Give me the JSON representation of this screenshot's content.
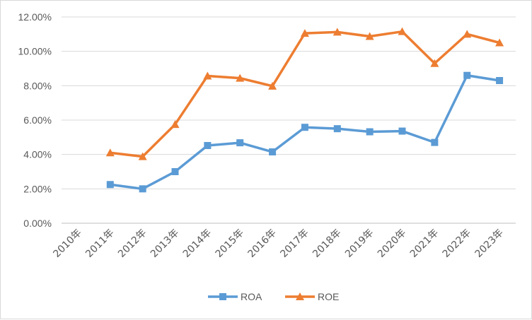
{
  "chart_data": {
    "type": "line",
    "title": "",
    "xlabel": "",
    "ylabel": "",
    "categories": [
      "2010年",
      "2011年",
      "2012年",
      "2013年",
      "2014年",
      "2015年",
      "2016年",
      "2017年",
      "2018年",
      "2019年",
      "2020年",
      "2021年",
      "2022年",
      "2023年"
    ],
    "y_ticks": [
      "0.00%",
      "2.00%",
      "4.00%",
      "6.00%",
      "8.00%",
      "10.00%",
      "12.00%"
    ],
    "ylim": [
      0,
      12
    ],
    "grid": true,
    "legend_position": "bottom",
    "series": [
      {
        "name": "ROA",
        "color": "#5B9BD5",
        "marker": "square",
        "values": [
          null,
          2.25,
          2.0,
          3.0,
          4.52,
          4.68,
          4.15,
          5.58,
          5.5,
          5.32,
          5.36,
          4.7,
          8.6,
          8.3
        ]
      },
      {
        "name": "ROE",
        "color": "#ED7D31",
        "marker": "triangle",
        "values": [
          null,
          4.1,
          3.88,
          5.75,
          8.57,
          8.44,
          7.98,
          11.05,
          11.12,
          10.87,
          11.15,
          9.3,
          11.0,
          10.5
        ]
      }
    ]
  }
}
